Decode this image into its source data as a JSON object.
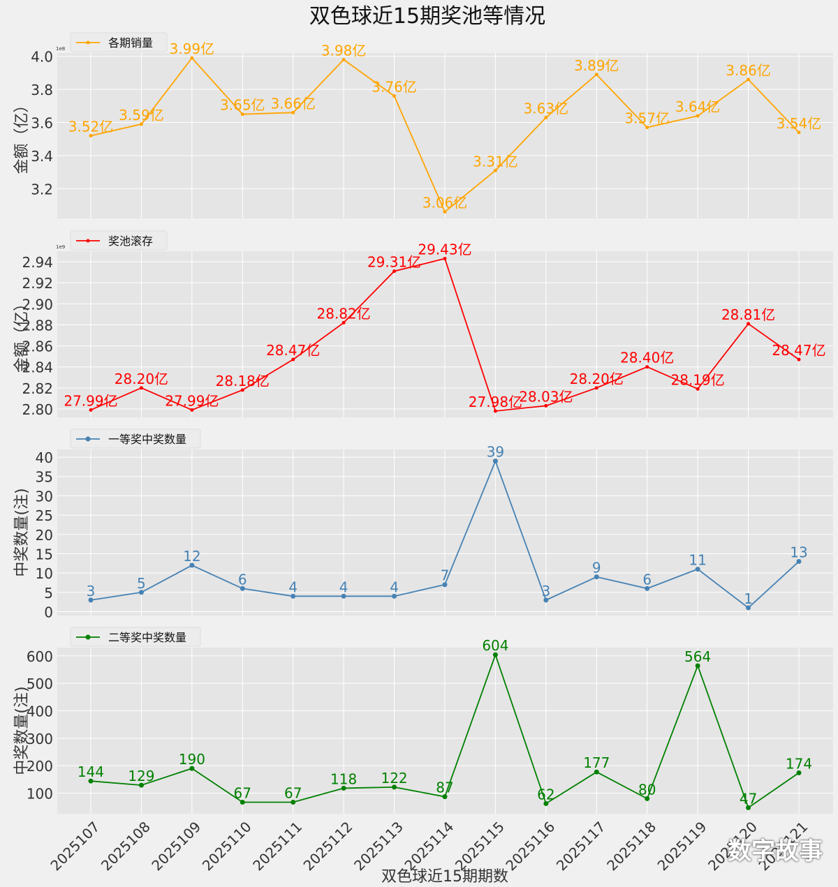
{
  "watermark": "数字故事",
  "chart_data": {
    "type": "line",
    "title": "双色球近15期奖池等情况",
    "xlabel": "双色球近15期期数",
    "categories": [
      "2025107",
      "2025108",
      "2025109",
      "2025110",
      "2025111",
      "2025112",
      "2025113",
      "2025114",
      "2025115",
      "2025116",
      "2025117",
      "2025118",
      "2025119",
      "2025120",
      "2025121"
    ],
    "panels": [
      {
        "name": "各期销量",
        "ylabel": "金额（亿）",
        "color": "#ffa500",
        "marker_size": 2.5,
        "ylim": [
          3.02,
          4.02
        ],
        "yticks": [
          3.2,
          3.4,
          3.6,
          3.8,
          4.0
        ],
        "ytick_labels": [
          "3.2",
          "3.4",
          "3.6",
          "3.8",
          "4.0"
        ],
        "exponent": "1e8",
        "values": [
          3.52,
          3.59,
          3.99,
          3.65,
          3.66,
          3.98,
          3.76,
          3.06,
          3.31,
          3.63,
          3.89,
          3.57,
          3.64,
          3.86,
          3.54
        ],
        "labels": [
          "3.52亿",
          "3.59亿",
          "3.99亿",
          "3.65亿",
          "3.66亿",
          "3.98亿",
          "3.76亿",
          "3.06亿",
          "3.31亿",
          "3.63亿",
          "3.89亿",
          "3.57亿",
          "3.64亿",
          "3.86亿",
          "3.54亿"
        ]
      },
      {
        "name": "奖池滚存",
        "ylabel": "金额（亿）",
        "color": "#ff0000",
        "marker_size": 2.5,
        "ylim": [
          2.792,
          2.95
        ],
        "yticks": [
          2.8,
          2.82,
          2.84,
          2.86,
          2.88,
          2.9,
          2.92,
          2.94
        ],
        "ytick_labels": [
          "2.80",
          "2.82",
          "2.84",
          "2.86",
          "2.88",
          "2.90",
          "2.92",
          "2.94"
        ],
        "exponent": "1e9",
        "values": [
          2.799,
          2.82,
          2.799,
          2.818,
          2.847,
          2.882,
          2.931,
          2.943,
          2.798,
          2.803,
          2.82,
          2.84,
          2.819,
          2.881,
          2.847
        ],
        "labels": [
          "27.99亿",
          "28.20亿",
          "27.99亿",
          "28.18亿",
          "28.47亿",
          "28.82亿",
          "29.31亿",
          "29.43亿",
          "27.98亿",
          "28.03亿",
          "28.20亿",
          "28.40亿",
          "28.19亿",
          "28.81亿",
          "28.47亿"
        ]
      },
      {
        "name": "一等奖中奖数量",
        "ylabel": "中奖数量(注)",
        "color": "#4682b4",
        "marker_size": 3.5,
        "ylim": [
          -1,
          42
        ],
        "yticks": [
          0,
          5,
          10,
          15,
          20,
          25,
          30,
          35,
          40
        ],
        "ytick_labels": [
          "0",
          "5",
          "10",
          "15",
          "20",
          "25",
          "30",
          "35",
          "40"
        ],
        "values": [
          3,
          5,
          12,
          6,
          4,
          4,
          4,
          7,
          39,
          3,
          9,
          6,
          11,
          1,
          13
        ],
        "labels": [
          "3",
          "5",
          "12",
          "6",
          "4",
          "4",
          "4",
          "7",
          "39",
          "3",
          "9",
          "6",
          "11",
          "1",
          "13"
        ]
      },
      {
        "name": "二等奖中奖数量",
        "ylabel": "中奖数量(注)",
        "color": "#008000",
        "marker_size": 3.5,
        "ylim": [
          25,
          630
        ],
        "yticks": [
          100,
          200,
          300,
          400,
          500,
          600
        ],
        "ytick_labels": [
          "100",
          "200",
          "300",
          "400",
          "500",
          "600"
        ],
        "values": [
          144,
          129,
          190,
          67,
          67,
          118,
          122,
          87,
          604,
          62,
          177,
          80,
          564,
          47,
          174
        ],
        "labels": [
          "144",
          "129",
          "190",
          "67",
          "67",
          "118",
          "122",
          "87",
          "604",
          "62",
          "177",
          "80",
          "564",
          "47",
          "174"
        ]
      }
    ]
  }
}
